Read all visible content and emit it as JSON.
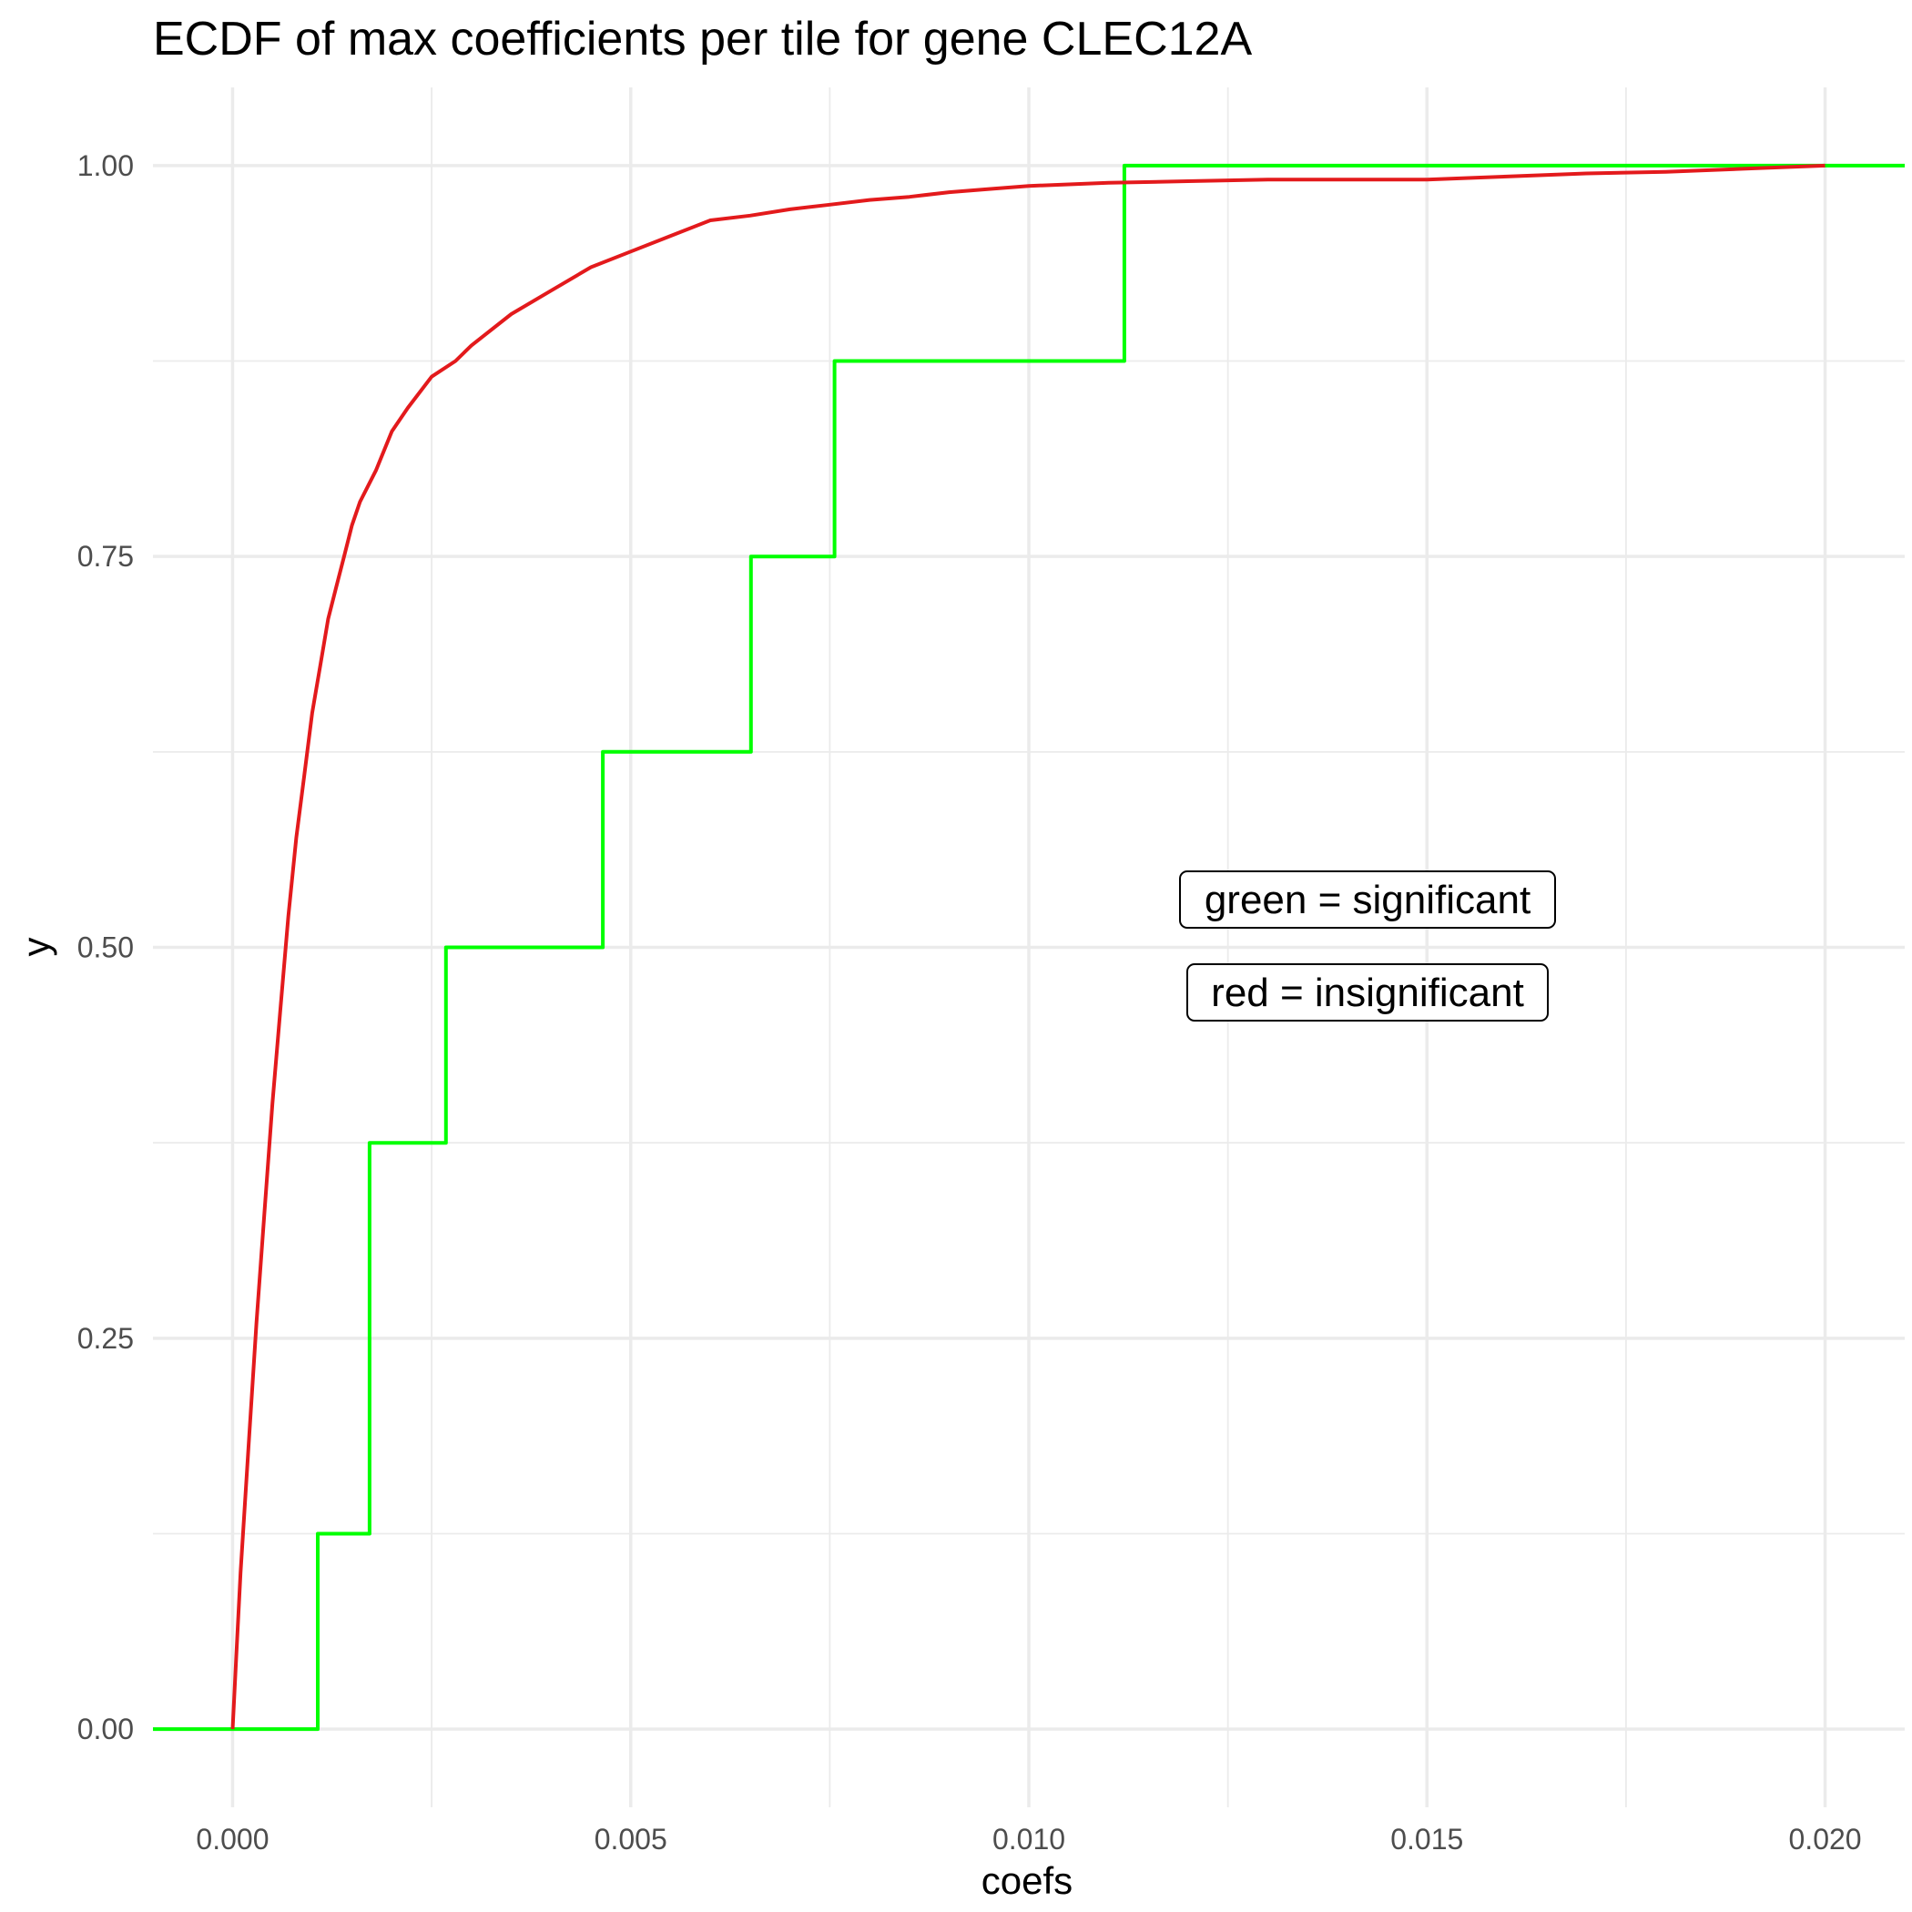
{
  "chart_data": {
    "type": "line",
    "title": "ECDF of max coefficients per tile for gene CLEC12A",
    "xlabel": "coefs",
    "ylabel": "y",
    "xlim": [
      -0.001,
      0.021
    ],
    "ylim": [
      -0.05,
      1.05
    ],
    "x_ticks": [
      0.0,
      0.005,
      0.01,
      0.015,
      0.02
    ],
    "x_tick_labels": [
      "0.000",
      "0.005",
      "0.010",
      "0.015",
      "0.020"
    ],
    "y_ticks": [
      0.0,
      0.25,
      0.5,
      0.75,
      1.0
    ],
    "y_tick_labels": [
      "0.00",
      "0.25",
      "0.50",
      "0.75",
      "1.00"
    ],
    "grid": true,
    "legend": "none",
    "colors": {
      "significant": "#00ff00",
      "insignificant": "#e31a1c"
    },
    "annotations": [
      "green = significant",
      "red = insignificant"
    ],
    "series": [
      {
        "color": "#00ff00",
        "step": true,
        "x": [
          -0.001,
          0.00107,
          0.00172,
          0.00268,
          0.00465,
          0.00651,
          0.00756,
          0.0112,
          0.021
        ],
        "y": [
          0.0,
          0.125,
          0.375,
          0.5,
          0.625,
          0.75,
          0.875,
          1.0,
          1.0
        ]
      },
      {
        "color": "#e31a1c",
        "step": false,
        "x": [
          0.0,
          5e-05,
          0.0001,
          0.0002,
          0.0003,
          0.0004,
          0.0005,
          0.0006,
          0.0007,
          0.0008,
          0.0009,
          0.001,
          0.0011,
          0.0012,
          0.0013,
          0.0014,
          0.0015,
          0.0016,
          0.0018,
          0.002,
          0.0022,
          0.0025,
          0.0028,
          0.003,
          0.0035,
          0.004,
          0.0045,
          0.005,
          0.0055,
          0.006,
          0.0065,
          0.007,
          0.0075,
          0.008,
          0.0085,
          0.009,
          0.0095,
          0.01,
          0.011,
          0.012,
          0.013,
          0.014,
          0.015,
          0.016,
          0.017,
          0.018,
          0.019,
          0.02
        ],
        "y": [
          0.0,
          0.05,
          0.1,
          0.18,
          0.26,
          0.33,
          0.4,
          0.46,
          0.52,
          0.57,
          0.61,
          0.65,
          0.68,
          0.71,
          0.73,
          0.75,
          0.77,
          0.785,
          0.805,
          0.83,
          0.845,
          0.865,
          0.875,
          0.885,
          0.905,
          0.92,
          0.935,
          0.945,
          0.955,
          0.965,
          0.968,
          0.972,
          0.975,
          0.978,
          0.98,
          0.983,
          0.985,
          0.987,
          0.989,
          0.99,
          0.991,
          0.991,
          0.991,
          0.993,
          0.995,
          0.996,
          0.998,
          1.0
        ]
      }
    ]
  }
}
